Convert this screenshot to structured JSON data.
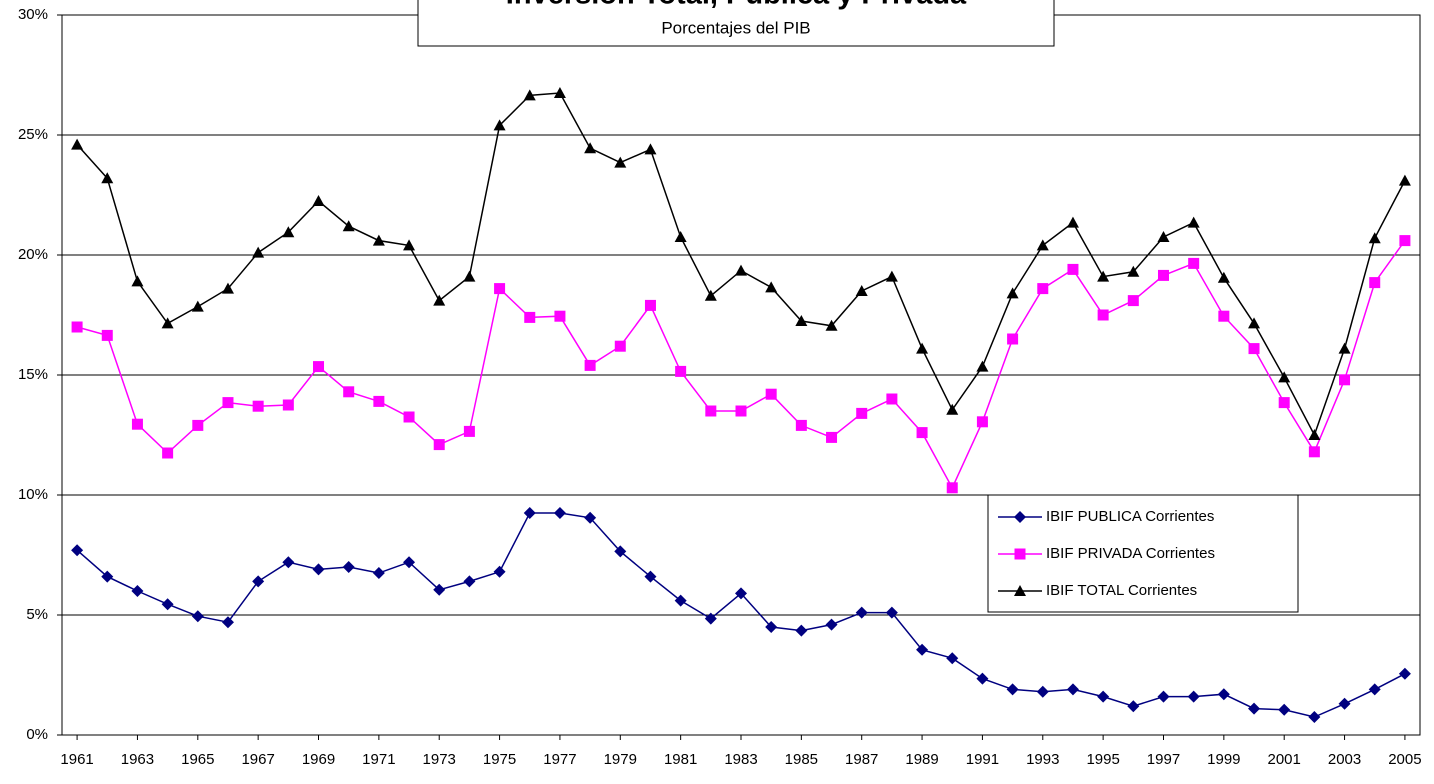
{
  "chart_data": {
    "type": "line",
    "title": "Inversión Total, Pública y Privada",
    "subtitle": "Porcentajes del PIB",
    "x": [
      1961,
      1962,
      1963,
      1964,
      1965,
      1966,
      1967,
      1968,
      1969,
      1970,
      1971,
      1972,
      1973,
      1974,
      1975,
      1976,
      1977,
      1978,
      1979,
      1980,
      1981,
      1982,
      1983,
      1984,
      1985,
      1986,
      1987,
      1988,
      1989,
      1990,
      1991,
      1992,
      1993,
      1994,
      1995,
      1996,
      1997,
      1998,
      1999,
      2000,
      2001,
      2002,
      2003,
      2004,
      2005
    ],
    "xlim": [
      1960.5,
      2005.5
    ],
    "xticks": [
      1961,
      1963,
      1965,
      1967,
      1969,
      1971,
      1973,
      1975,
      1977,
      1979,
      1981,
      1983,
      1985,
      1987,
      1989,
      1991,
      1993,
      1995,
      1997,
      1999,
      2001,
      2003,
      2005
    ],
    "ylim": [
      0,
      30
    ],
    "yticks": [
      {
        "value": 0,
        "label": "0%"
      },
      {
        "value": 5,
        "label": "5%"
      },
      {
        "value": 10,
        "label": "10%"
      },
      {
        "value": 15,
        "label": "15%"
      },
      {
        "value": 20,
        "label": "20%"
      },
      {
        "value": 25,
        "label": "25%"
      },
      {
        "value": 30,
        "label": "30%"
      }
    ],
    "grid": true,
    "series": [
      {
        "name": "IBIF PUBLICA Corrientes",
        "color": "#000080",
        "marker": "diamond",
        "values": [
          7.7,
          6.6,
          6.0,
          5.45,
          4.95,
          4.7,
          6.4,
          7.2,
          6.9,
          7.0,
          6.75,
          7.2,
          6.05,
          6.4,
          6.8,
          9.25,
          9.25,
          9.05,
          7.65,
          6.6,
          5.6,
          4.85,
          5.9,
          4.5,
          4.35,
          4.6,
          5.1,
          5.1,
          3.55,
          3.2,
          2.35,
          1.9,
          1.8,
          1.9,
          1.6,
          1.2,
          1.6,
          1.6,
          1.7,
          1.1,
          1.05,
          0.75,
          1.3,
          1.9,
          2.55
        ]
      },
      {
        "name": "IBIF PRIVADA Corrientes",
        "color": "#FF00FF",
        "marker": "square",
        "values": [
          17.0,
          16.65,
          12.95,
          11.75,
          12.9,
          13.85,
          13.7,
          13.75,
          15.35,
          14.3,
          13.9,
          13.25,
          12.1,
          12.65,
          18.6,
          17.4,
          17.45,
          15.4,
          16.2,
          17.9,
          15.15,
          13.5,
          13.5,
          14.2,
          12.9,
          12.4,
          13.4,
          14.0,
          12.6,
          10.3,
          13.05,
          16.5,
          18.6,
          19.4,
          17.5,
          18.1,
          19.15,
          19.65,
          17.45,
          16.1,
          13.85,
          11.8,
          14.8,
          18.85,
          20.6
        ]
      },
      {
        "name": "IBIF TOTAL Corrientes",
        "color": "#000000",
        "marker": "triangle",
        "values": [
          24.6,
          23.2,
          18.9,
          17.15,
          17.85,
          18.6,
          20.1,
          20.95,
          22.25,
          21.2,
          20.6,
          20.4,
          18.1,
          19.1,
          25.4,
          26.65,
          26.75,
          24.45,
          23.85,
          24.4,
          20.75,
          18.3,
          19.35,
          18.65,
          17.25,
          17.05,
          18.5,
          19.1,
          16.1,
          13.55,
          15.35,
          18.4,
          20.4,
          21.35,
          19.1,
          19.3,
          20.75,
          21.35,
          19.05,
          17.15,
          14.9,
          12.5,
          16.1,
          20.7,
          23.1
        ]
      }
    ]
  }
}
